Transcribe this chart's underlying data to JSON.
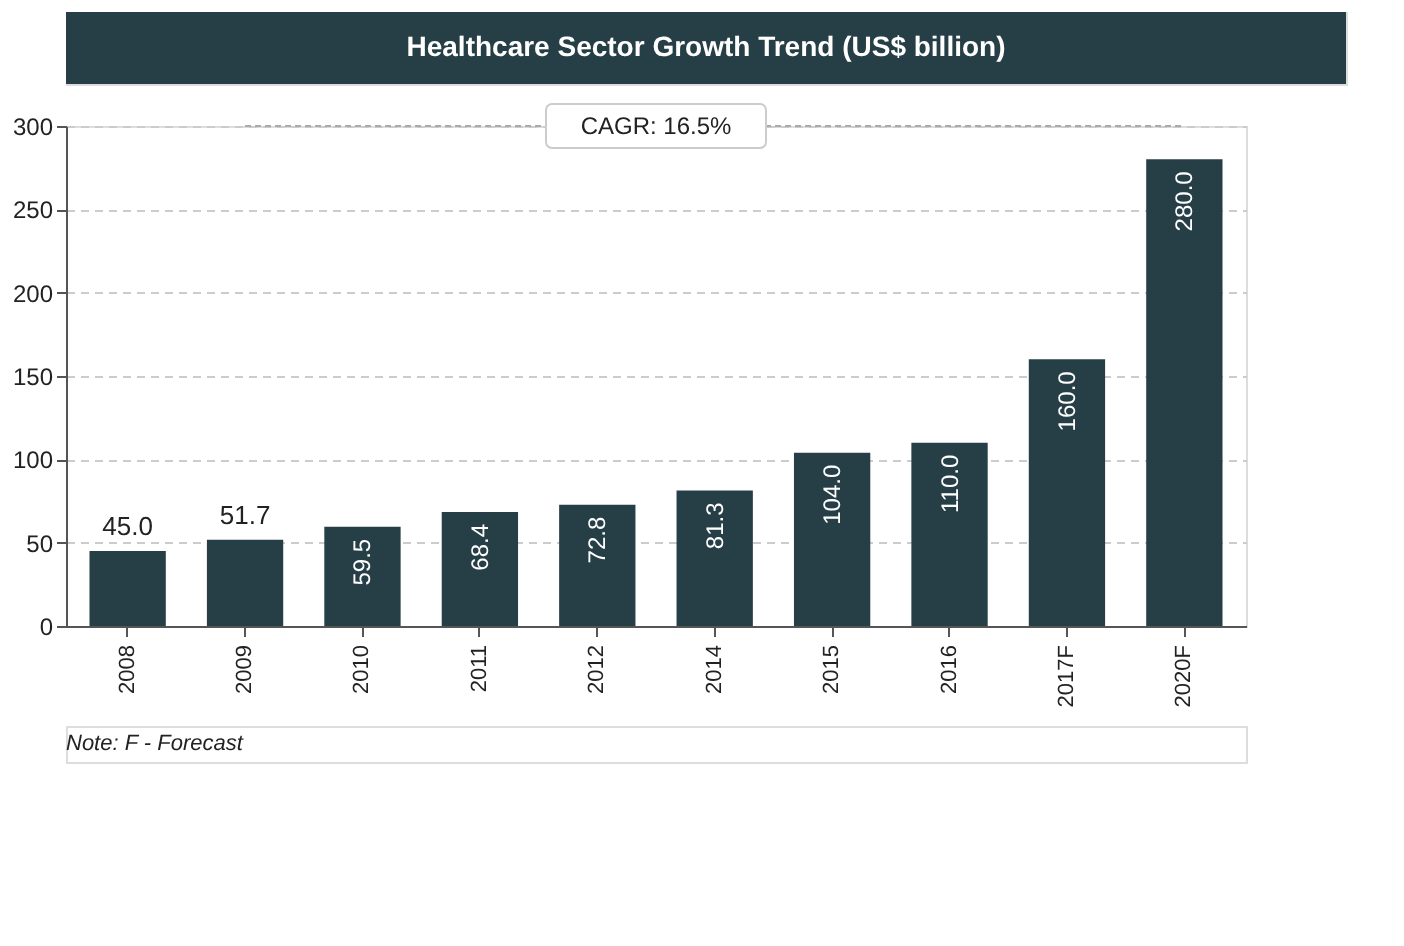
{
  "chart_data": {
    "type": "bar",
    "title": "Healthcare Sector Growth Trend (US$ billion)",
    "categories": [
      "2008",
      "2009",
      "2010",
      "2011",
      "2012",
      "2014",
      "2015",
      "2016",
      "2017F",
      "2020F"
    ],
    "values": [
      45.0,
      51.7,
      59.5,
      68.4,
      72.8,
      81.3,
      104.0,
      110.0,
      160.0,
      280.0
    ],
    "value_labels": [
      "45.0",
      "51.7",
      "59.5",
      "68.4",
      "72.8",
      "81.3",
      "104.0",
      "110.0",
      "160.0",
      "280.0"
    ],
    "color": "#263f47",
    "ylim": [
      0,
      300
    ],
    "yticks": [
      0,
      50,
      100,
      150,
      200,
      250,
      300
    ],
    "grid": "y",
    "annotations": [
      "CAGR: 16.5%",
      "Note: F - Forecast"
    ]
  }
}
